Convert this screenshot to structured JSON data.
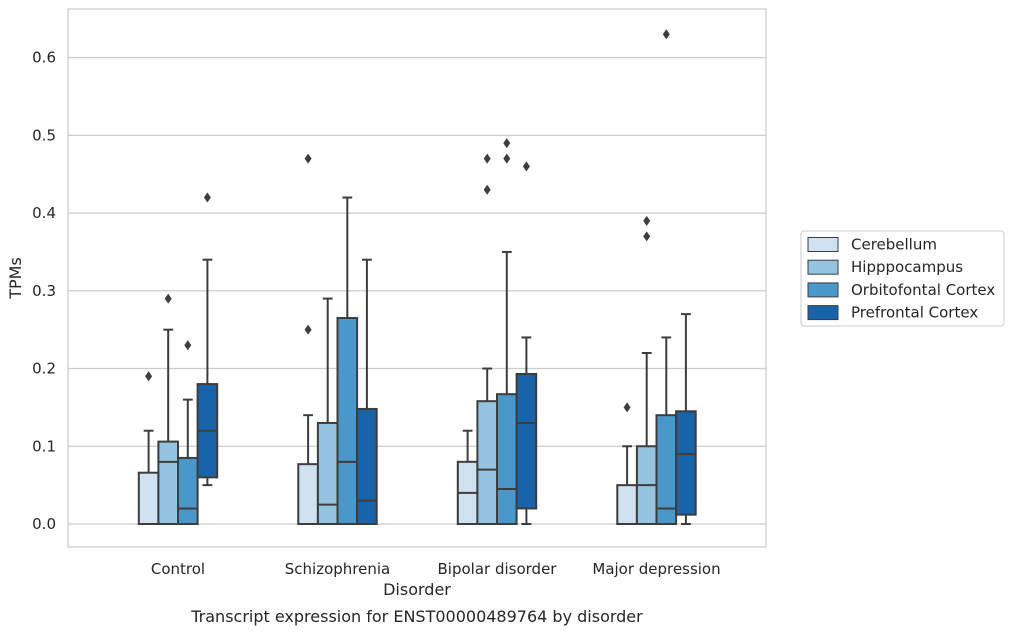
{
  "chart_data": {
    "type": "box",
    "title": "",
    "caption": "Transcript expression for ENST00000489764 by disorder",
    "xlabel": "Disorder",
    "ylabel": "TPMs",
    "ylim": [
      -0.03,
      0.665
    ],
    "yticks": [
      0.0,
      0.1,
      0.2,
      0.3,
      0.4,
      0.5,
      0.6
    ],
    "ytick_labels": [
      "0.0",
      "0.1",
      "0.2",
      "0.3",
      "0.4",
      "0.5",
      "0.6"
    ],
    "grid": true,
    "legend_position": "right",
    "categories": [
      "Control",
      "Schizophrenia",
      "Bipolar disorder",
      "Major depression"
    ],
    "series": [
      {
        "name": "Cerebellum",
        "color": "#d0e1f2",
        "boxes": [
          {
            "q1": 0.0,
            "median": 0.0,
            "q3": 0.066,
            "whisker_low": 0.0,
            "whisker_high": 0.12,
            "outliers": [
              0.19
            ]
          },
          {
            "q1": 0.0,
            "median": 0.0,
            "q3": 0.077,
            "whisker_low": 0.0,
            "whisker_high": 0.14,
            "outliers": [
              0.25,
              0.47
            ]
          },
          {
            "q1": 0.0,
            "median": 0.04,
            "q3": 0.08,
            "whisker_low": 0.0,
            "whisker_high": 0.12,
            "outliers": []
          },
          {
            "q1": 0.0,
            "median": 0.0,
            "q3": 0.05,
            "whisker_low": 0.0,
            "whisker_high": 0.1,
            "outliers": [
              0.15
            ]
          }
        ]
      },
      {
        "name": "Hipppocampus",
        "color": "#94c4df",
        "boxes": [
          {
            "q1": 0.0,
            "median": 0.08,
            "q3": 0.106,
            "whisker_low": 0.0,
            "whisker_high": 0.25,
            "outliers": [
              0.29
            ]
          },
          {
            "q1": 0.0,
            "median": 0.025,
            "q3": 0.13,
            "whisker_low": 0.0,
            "whisker_high": 0.29,
            "outliers": []
          },
          {
            "q1": 0.0,
            "median": 0.07,
            "q3": 0.158,
            "whisker_low": 0.0,
            "whisker_high": 0.2,
            "outliers": [
              0.43,
              0.47
            ]
          },
          {
            "q1": 0.0,
            "median": 0.05,
            "q3": 0.1,
            "whisker_low": 0.0,
            "whisker_high": 0.22,
            "outliers": [
              0.37,
              0.39
            ]
          }
        ]
      },
      {
        "name": "Orbitofontal Cortex",
        "color": "#4a98c9",
        "boxes": [
          {
            "q1": 0.0,
            "median": 0.02,
            "q3": 0.085,
            "whisker_low": 0.0,
            "whisker_high": 0.16,
            "outliers": [
              0.23
            ]
          },
          {
            "q1": 0.0,
            "median": 0.08,
            "q3": 0.265,
            "whisker_low": 0.0,
            "whisker_high": 0.42,
            "outliers": []
          },
          {
            "q1": 0.0,
            "median": 0.045,
            "q3": 0.167,
            "whisker_low": 0.0,
            "whisker_high": 0.35,
            "outliers": [
              0.47,
              0.49
            ]
          },
          {
            "q1": 0.0,
            "median": 0.02,
            "q3": 0.14,
            "whisker_low": 0.0,
            "whisker_high": 0.24,
            "outliers": [
              0.63
            ]
          }
        ]
      },
      {
        "name": "Prefrontal Cortex",
        "color": "#1764ab",
        "boxes": [
          {
            "q1": 0.06,
            "median": 0.12,
            "q3": 0.18,
            "whisker_low": 0.05,
            "whisker_high": 0.34,
            "outliers": [
              0.42
            ]
          },
          {
            "q1": 0.0,
            "median": 0.03,
            "q3": 0.148,
            "whisker_low": 0.0,
            "whisker_high": 0.34,
            "outliers": []
          },
          {
            "q1": 0.02,
            "median": 0.13,
            "q3": 0.193,
            "whisker_low": 0.0,
            "whisker_high": 0.24,
            "outliers": [
              0.46
            ]
          },
          {
            "q1": 0.012,
            "median": 0.09,
            "q3": 0.145,
            "whisker_low": 0.0,
            "whisker_high": 0.27,
            "outliers": []
          }
        ]
      }
    ]
  }
}
